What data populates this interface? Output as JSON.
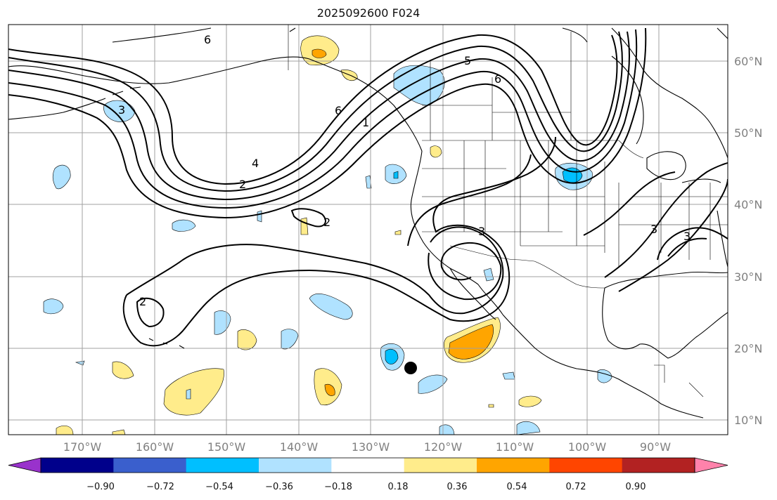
{
  "title": "2025092600 F024",
  "lat_labels": [
    "60°N",
    "50°N",
    "40°N",
    "30°N",
    "20°N",
    "10°N"
  ],
  "lon_labels": [
    "170°W",
    "160°W",
    "150°W",
    "140°W",
    "130°W",
    "120°W",
    "110°W",
    "100°W",
    "90°W"
  ],
  "colorbar": {
    "ticks": [
      "−0.90",
      "−0.72",
      "−0.54",
      "−0.36",
      "−0.18",
      "0.18",
      "0.36",
      "0.54",
      "0.72",
      "0.90"
    ],
    "colors": [
      "#9932cc",
      "#00008b",
      "#3a5fcd",
      "#00bfff",
      "#b0e2ff",
      "#ffffff",
      "#ffec8b",
      "#ffa500",
      "#ff4500",
      "#b22222",
      "#ff82ab"
    ]
  },
  "contour_labels": [
    "6",
    "6",
    "6",
    "5",
    "3",
    "4",
    "2",
    "2",
    "2",
    "3",
    "3",
    "3",
    "1"
  ],
  "colors": {
    "light_blue": "#b0e2ff",
    "blue": "#00bfff",
    "light_yellow": "#ffec8b",
    "orange": "#ffa500"
  }
}
